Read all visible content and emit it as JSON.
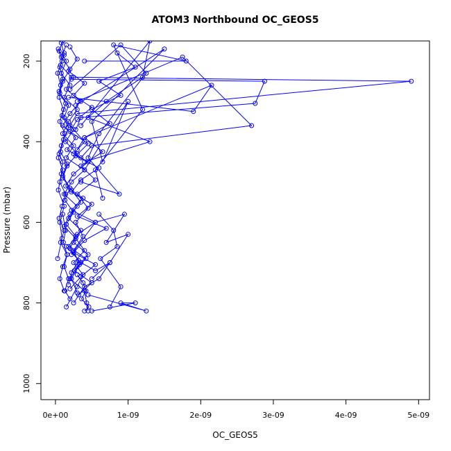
{
  "chart_data": {
    "type": "line",
    "title": "ATOM3 Northbound OC_GEOS5",
    "xlabel": "OC_GEOS5",
    "ylabel": "Pressure (mbar)",
    "xlim": [
      -2e-10,
      5.15e-09
    ],
    "ylim": [
      1040,
      150
    ],
    "y_reversed": true,
    "markers": "open-circle",
    "line_color": "#0000ff",
    "grid": false,
    "x_ticks": [
      {
        "value": 0,
        "label": "0e+00"
      },
      {
        "value": 1e-09,
        "label": "1e-09"
      },
      {
        "value": 2e-09,
        "label": "2e-09"
      },
      {
        "value": 3e-09,
        "label": "3e-09"
      },
      {
        "value": 4e-09,
        "label": "4e-09"
      },
      {
        "value": 5e-09,
        "label": "5e-09"
      }
    ],
    "y_ticks": [
      {
        "value": 200,
        "label": "200"
      },
      {
        "value": 400,
        "label": "400"
      },
      {
        "value": 600,
        "label": "600"
      },
      {
        "value": 800,
        "label": "800"
      },
      {
        "value": 1000,
        "label": "1000"
      }
    ],
    "series": [
      {
        "x": [
          1e-10,
          5e-11,
          1.5e-10,
          8e-11,
          2e-10,
          1.2e-10,
          3e-10,
          1.8e-10,
          1e-10,
          2.5e-10,
          1.5e-10,
          4e-10,
          2.2e-10,
          1.2e-10,
          3e-10,
          1.8e-10,
          3.5e-10,
          2.5e-10,
          4.5e-10,
          3e-10,
          2e-10,
          4e-10,
          4.3e-10,
          4.5e-10
        ],
        "y": [
          150,
          175,
          200,
          230,
          260,
          290,
          320,
          350,
          380,
          410,
          440,
          470,
          500,
          530,
          560,
          590,
          620,
          650,
          680,
          710,
          740,
          770,
          800,
          820
        ]
      },
      {
        "x": [
          8e-11,
          1.2e-10,
          6e-11,
          1e-10,
          5e-11,
          1.4e-10,
          9e-11,
          1.8e-10,
          1.1e-10,
          7e-11,
          1.6e-10,
          1e-10,
          2e-10,
          1.3e-10,
          2.5e-10,
          1.5e-10,
          2.8e-10,
          2e-10,
          3.2e-10,
          2.2e-10,
          1.8e-10
        ],
        "y": [
          155,
          185,
          215,
          245,
          275,
          305,
          335,
          365,
          395,
          425,
          455,
          485,
          515,
          545,
          575,
          605,
          635,
          665,
          695,
          725,
          755
        ]
      },
      {
        "x": [
          1.5e-10,
          8e-11,
          2e-10,
          1e-10,
          6e-11,
          1.8e-10,
          1.2e-10,
          2.5e-10,
          1.4e-10,
          3e-10,
          1.6e-10,
          1e-10,
          2.2e-10,
          3.5e-10,
          2e-10,
          1.2e-10,
          2.8e-10,
          4e-10,
          2.5e-10,
          3.8e-10,
          3e-10,
          1.5e-10
        ],
        "y": [
          160,
          190,
          220,
          250,
          280,
          310,
          340,
          370,
          400,
          430,
          460,
          490,
          520,
          550,
          580,
          610,
          640,
          670,
          700,
          730,
          760,
          810
        ]
      },
      {
        "x": [
          4e-11,
          9e-11,
          3e-11,
          7e-11,
          5e-11,
          1.1e-10,
          6e-11,
          1.3e-10,
          8e-11,
          4e-11,
          1e-10,
          6e-11,
          1.4e-10,
          9e-11,
          5e-11,
          1.2e-10,
          7e-11,
          1.6e-10,
          1e-10,
          6e-11,
          1.2e-10
        ],
        "y": [
          170,
          200,
          230,
          260,
          290,
          320,
          350,
          380,
          410,
          440,
          470,
          500,
          530,
          560,
          590,
          620,
          650,
          680,
          710,
          740,
          770
        ]
      },
      {
        "x": [
          2e-10,
          3e-10,
          1.8e-10,
          4e-10,
          2.5e-10,
          5e-10,
          3e-10,
          2e-10,
          4.5e-10,
          2.8e-10,
          6e-10,
          3.5e-10,
          2.2e-10,
          5e-10,
          3e-10,
          7e-10,
          4e-10,
          2.5e-10,
          5.5e-10,
          3.5e-10,
          2e-10
        ],
        "y": [
          165,
          195,
          225,
          255,
          285,
          315,
          345,
          375,
          405,
          435,
          465,
          495,
          525,
          555,
          585,
          615,
          645,
          675,
          705,
          735,
          765
        ]
      },
      {
        "x": [
          1.2e-10,
          7e-11,
          2.2e-10,
          1.5e-10,
          3.5e-10,
          2e-10,
          1e-10,
          2.8e-10,
          1.6e-10,
          4.5e-10,
          2.5e-10,
          1.4e-10,
          3.8e-10,
          2.2e-10,
          5.5e-10,
          3e-10,
          1.8e-10,
          4.2e-10,
          2.6e-10,
          5e-10,
          3.2e-10
        ],
        "y": [
          180,
          210,
          240,
          270,
          300,
          330,
          360,
          390,
          420,
          450,
          480,
          510,
          540,
          570,
          600,
          630,
          660,
          690,
          720,
          750,
          780
        ]
      },
      {
        "x": [
          8.5e-10,
          1.1e-09,
          6e-10,
          9e-10,
          5e-10,
          7.5e-10,
          4e-10,
          6.5e-10,
          3.5e-10,
          5.5e-10,
          3e-10,
          4.5e-10,
          2.8e-10,
          3.8e-10,
          2.5e-10,
          3.3e-10,
          2.2e-10,
          3e-10
        ],
        "y": [
          180,
          215,
          250,
          285,
          320,
          355,
          390,
          425,
          460,
          495,
          530,
          565,
          600,
          635,
          670,
          705,
          740,
          775
        ]
      },
      {
        "x": [
          2.5e-10,
          4.9e-09,
          3e-10,
          2e-10,
          4e-10,
          2.5e-10
        ],
        "y": [
          240,
          250,
          330,
          360,
          400,
          430
        ]
      },
      {
        "x": [
          2.2e-10,
          2.88e-09,
          2.75e-09,
          3.5e-10,
          2.8e-10
        ],
        "y": [
          245,
          250,
          305,
          340,
          370
        ]
      },
      {
        "x": [
          1.8e-10,
          1.9e-09,
          2.15e-09,
          4e-10,
          3e-10
        ],
        "y": [
          290,
          325,
          260,
          390,
          420
        ]
      },
      {
        "x": [
          3e-10,
          1.75e-09,
          2.7e-09,
          5e-10,
          3.5e-10
        ],
        "y": [
          300,
          190,
          360,
          410,
          440
        ]
      },
      {
        "x": [
          3.5e-10,
          1.3e-09,
          1.2e-09,
          7e-10,
          4.5e-10,
          1.3e-09,
          4e-10
        ],
        "y": [
          360,
          150,
          240,
          300,
          340,
          400,
          450
        ]
      },
      {
        "x": [
          2.8e-10,
          1.5e-09,
          5e-10,
          6.5e-10,
          1e-09,
          4e-10
        ],
        "y": [
          310,
          170,
          350,
          450,
          300,
          470
        ]
      },
      {
        "x": [
          2e-10,
          9e-10,
          1.25e-09,
          6e-10,
          4.5e-10,
          8.8e-10,
          3.5e-10
        ],
        "y": [
          270,
          160,
          230,
          380,
          440,
          530,
          500
        ]
      },
      {
        "x": [
          4e-10,
          1.8e-09,
          8e-10,
          1.2e-09,
          5.5e-10,
          6.5e-10
        ],
        "y": [
          200,
          200,
          160,
          320,
          470,
          540
        ]
      },
      {
        "x": [
          2.2e-10,
          5.5e-10,
          9.5e-10,
          7e-10,
          1e-09,
          7.5e-10,
          5e-10
        ],
        "y": [
          680,
          600,
          580,
          650,
          630,
          700,
          740
        ]
      },
      {
        "x": [
          6e-10,
          8e-10,
          8.5e-10,
          6.2e-10,
          9e-10,
          7.5e-10
        ],
        "y": [
          580,
          620,
          660,
          690,
          760,
          810
        ]
      },
      {
        "x": [
          4.5e-10,
          1.25e-09,
          9e-10,
          1.1e-09,
          5e-10
        ],
        "y": [
          780,
          820,
          800,
          800,
          820
        ]
      },
      {
        "x": [
          1.5e-10,
          3.5e-10,
          5.5e-10,
          7.5e-10,
          6e-10,
          4e-10,
          2.5e-10
        ],
        "y": [
          660,
          700,
          720,
          700,
          740,
          760,
          800
        ]
      },
      {
        "x": [
          5e-11,
          1e-10,
          8e-11,
          4e-11,
          1.2e-10,
          6e-11,
          9e-11,
          3e-11
        ],
        "y": [
          430,
          450,
          480,
          520,
          560,
          600,
          640,
          690
        ]
      },
      {
        "x": [
          1e-10,
          1.4e-10,
          1.1e-10,
          1.6e-10,
          1.2e-10,
          1.8e-10,
          1.3e-10,
          2e-10
        ],
        "y": [
          580,
          620,
          650,
          680,
          710,
          740,
          770,
          790
        ]
      },
      {
        "x": [
          3e-10,
          3.8e-10,
          4.2e-10,
          3.6e-10,
          4.6e-10,
          4e-10
        ],
        "y": [
          730,
          750,
          770,
          790,
          810,
          820
        ]
      }
    ]
  }
}
